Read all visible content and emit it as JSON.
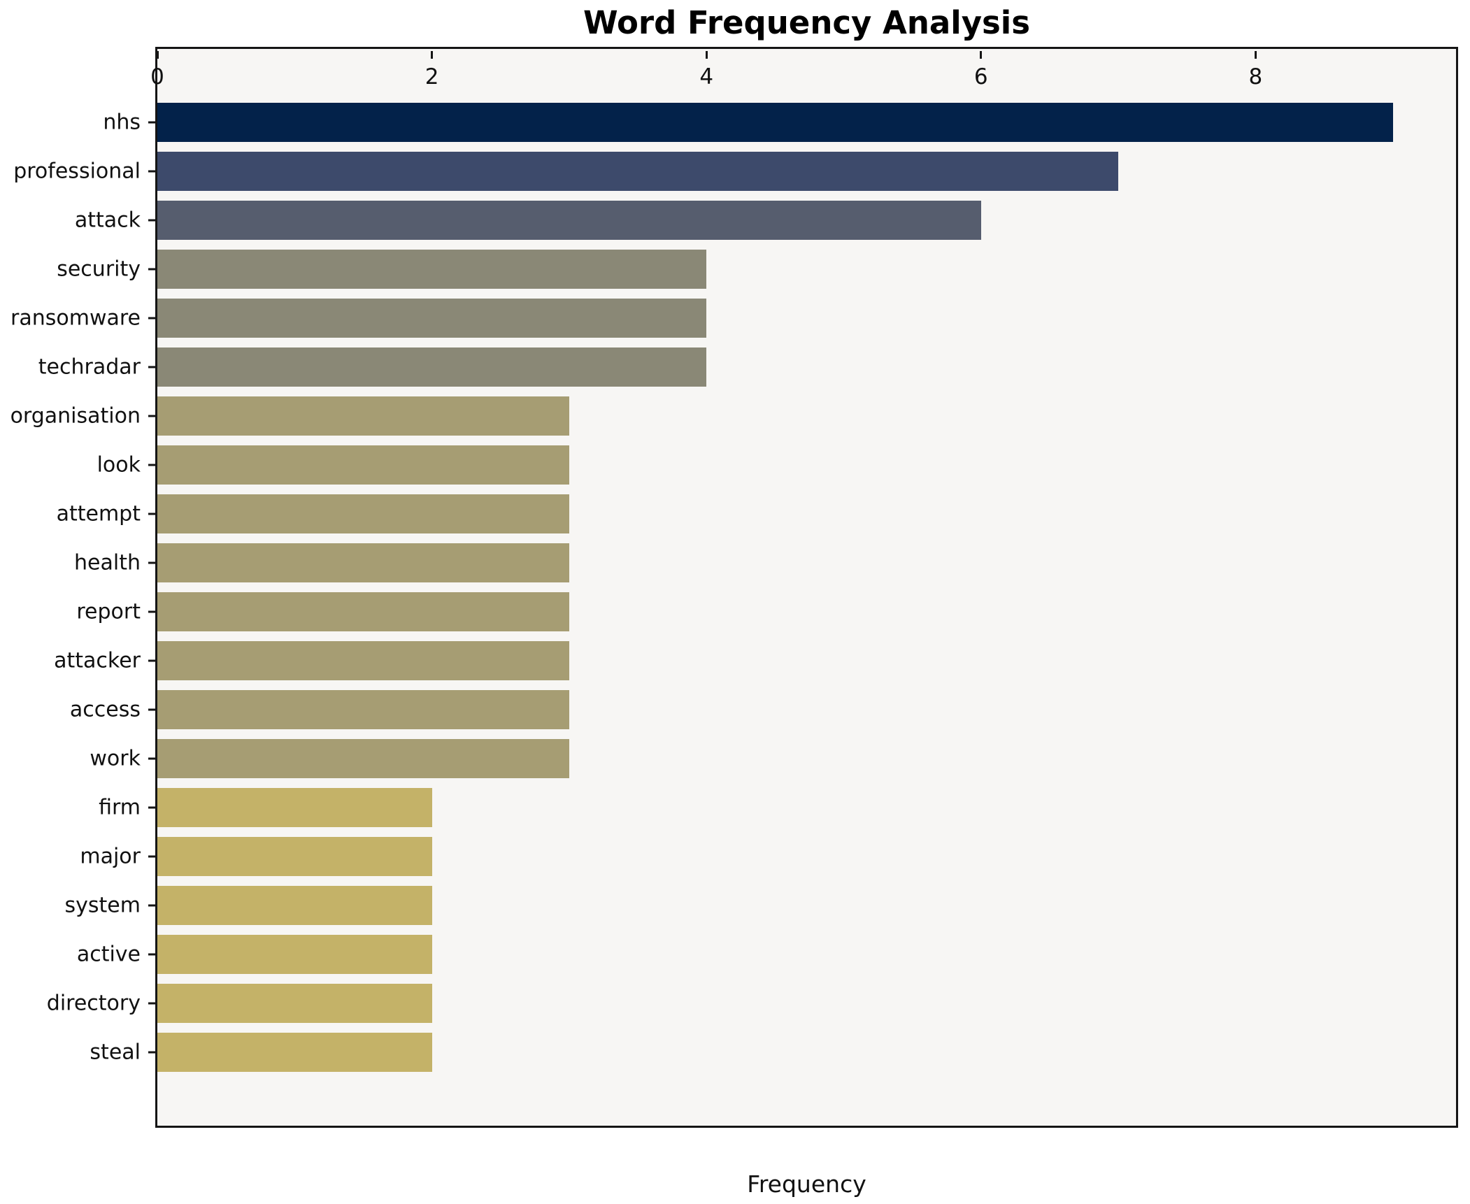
{
  "title": "Word Frequency Analysis",
  "xlabel": "Frequency",
  "chart_data": {
    "type": "bar",
    "orientation": "horizontal",
    "title": "Word Frequency Analysis",
    "xlabel": "Frequency",
    "ylabel": "",
    "categories": [
      "nhs",
      "professional",
      "attack",
      "security",
      "ransomware",
      "techradar",
      "organisation",
      "look",
      "attempt",
      "health",
      "report",
      "attacker",
      "access",
      "work",
      "firm",
      "major",
      "system",
      "active",
      "directory",
      "steal"
    ],
    "values": [
      9,
      7,
      6,
      4,
      4,
      4,
      3,
      3,
      3,
      3,
      3,
      3,
      3,
      3,
      2,
      2,
      2,
      2,
      2,
      2
    ],
    "bar_colors": [
      "#03224a",
      "#3d4a6b",
      "#565d6e",
      "#8a8876",
      "#8a8876",
      "#8a8876",
      "#a69d73",
      "#a69d73",
      "#a69d73",
      "#a69d73",
      "#a69d73",
      "#a69d73",
      "#a69d73",
      "#a69d73",
      "#c4b268",
      "#c4b268",
      "#c4b268",
      "#c4b268",
      "#c4b268",
      "#c4b268"
    ],
    "xticks": [
      0,
      2,
      4,
      6,
      8
    ],
    "xlim": [
      0,
      9.46
    ],
    "grid": false,
    "legend": null,
    "plot_bg": "#f7f6f4",
    "fig_bg": "#ffffff",
    "spine_color": "#151515"
  }
}
